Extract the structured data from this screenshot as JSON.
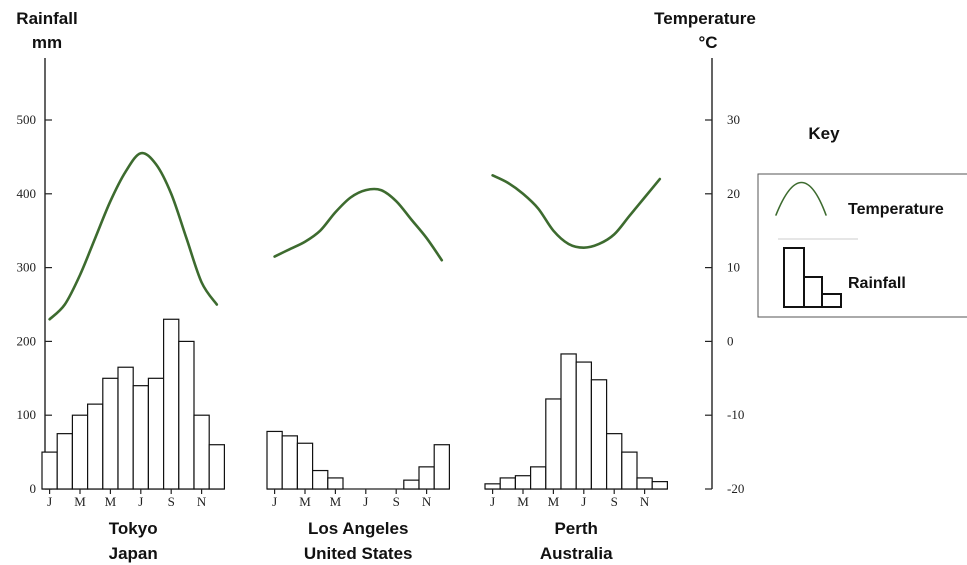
{
  "chart_data": {
    "type": "bar",
    "left_axis": {
      "title_line1": "Rainfall",
      "title_line2": "mm",
      "ticks": [
        0,
        100,
        200,
        300,
        400,
        500
      ],
      "range": [
        0,
        500
      ]
    },
    "right_axis": {
      "title_line1": "Temperature",
      "title_line2": "°C",
      "ticks": [
        -20,
        -10,
        0,
        10,
        20,
        30
      ],
      "range": [
        -20,
        30
      ]
    },
    "month_labels": [
      "J",
      "M",
      "M",
      "J",
      "S",
      "N"
    ],
    "cities": [
      {
        "name": "Tokyo",
        "country": "Japan",
        "rainfall": [
          50,
          75,
          100,
          115,
          150,
          165,
          140,
          150,
          230,
          200,
          100,
          60
        ],
        "temperature": [
          3,
          5,
          9,
          14,
          19,
          23,
          25.5,
          24,
          20,
          14,
          8,
          5
        ]
      },
      {
        "name": "Los Angeles",
        "country": "United States",
        "rainfall": [
          78,
          72,
          62,
          25,
          15,
          0,
          0,
          0,
          0,
          12,
          30,
          60
        ],
        "temperature": [
          11.5,
          12.5,
          13.5,
          15,
          17.5,
          19.5,
          20.5,
          20.5,
          19,
          16.5,
          14,
          11
        ]
      },
      {
        "name": "Perth",
        "country": "Australia",
        "rainfall": [
          7,
          15,
          18,
          30,
          122,
          183,
          172,
          148,
          75,
          50,
          15,
          10
        ],
        "temperature": [
          22.5,
          21.5,
          20,
          18,
          15,
          13.2,
          12.7,
          13.2,
          14.5,
          17,
          19.5,
          22
        ]
      }
    ],
    "legend": {
      "title": "Key",
      "items": [
        "Temperature",
        "Rainfall"
      ],
      "position": "right"
    },
    "colors": {
      "temperature_line": "#3d6b2f",
      "bars_fill": "#ffffff",
      "bars_stroke": "#111111"
    }
  }
}
